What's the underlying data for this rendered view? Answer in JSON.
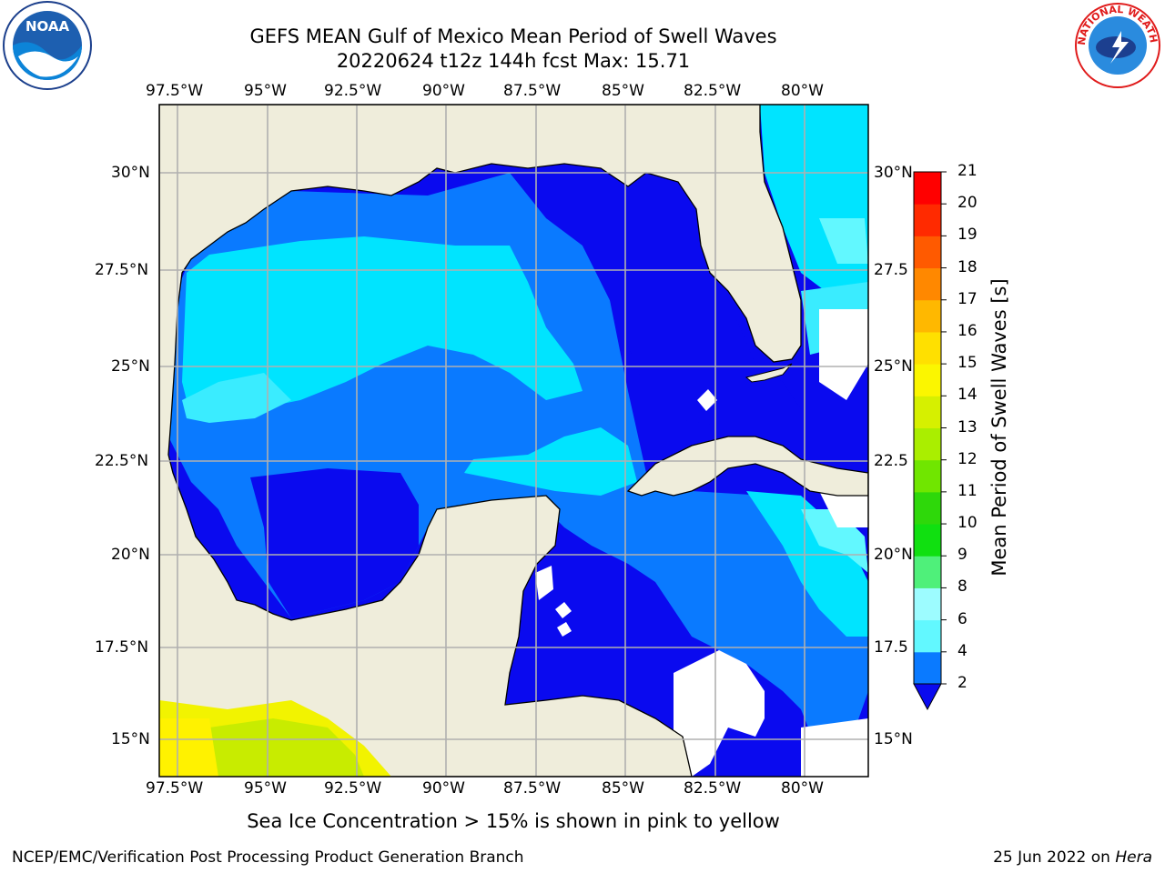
{
  "title": {
    "line1": "GEFS MEAN Gulf of Mexico Mean Period of Swell Waves",
    "line2": "20220624 t12z 144h fcst   Max: 15.71"
  },
  "map": {
    "lon_labels_top": [
      "97.5°W",
      "95°W",
      "92.5°W",
      "90°W",
      "87.5°W",
      "85°W",
      "82.5°W",
      "80°W"
    ],
    "lon_labels_bottom": [
      "97.5°W",
      "95°W",
      "92.5°W",
      "90°W",
      "87.5°W",
      "85°W",
      "82.5°W",
      "80°W"
    ],
    "lat_labels_left": [
      "30°N",
      "27.5°N",
      "25°N",
      "22.5°N",
      "20°N",
      "17.5°N",
      "15°N"
    ],
    "lat_labels_right": [
      "30°N",
      "27.5",
      "25°N",
      "22.5",
      "20°N",
      "17.5",
      "15°N"
    ],
    "colors": {
      "land": "#efeddb",
      "coast": "#000000",
      "grid": "#b0b0b0",
      "ice": "#e6f000"
    }
  },
  "colorbar": {
    "title": "Mean Period of Swell Waves [s]",
    "tick_labels": [
      "2",
      "4",
      "6",
      "8",
      "9",
      "10",
      "11",
      "12",
      "13",
      "14",
      "15",
      "16",
      "17",
      "18",
      "19",
      "20",
      "21"
    ],
    "colors": [
      "#0a0aef",
      "#0a7aff",
      "#00e4ff",
      "#2ff4ff",
      "#62f8ff",
      "#9dfcff",
      "#4ff07a",
      "#10e010",
      "#2ed80a",
      "#70e600",
      "#aaee00",
      "#d6f000",
      "#fbf600",
      "#ffe000",
      "#ffb800",
      "#ff8800",
      "#ff5a00",
      "#ff2a00",
      "#ff0000"
    ]
  },
  "note": "Sea Ice Concentration > 15% is shown in pink to yellow",
  "footer": {
    "left": "NCEP/EMC/Verification Post Processing Product Generation Branch",
    "right_prefix": "25 Jun 2022 on ",
    "right_host": "Hera"
  },
  "logos": {
    "noaa": "NOAA",
    "nws": "NATIONAL WEATHER SERVICE"
  }
}
